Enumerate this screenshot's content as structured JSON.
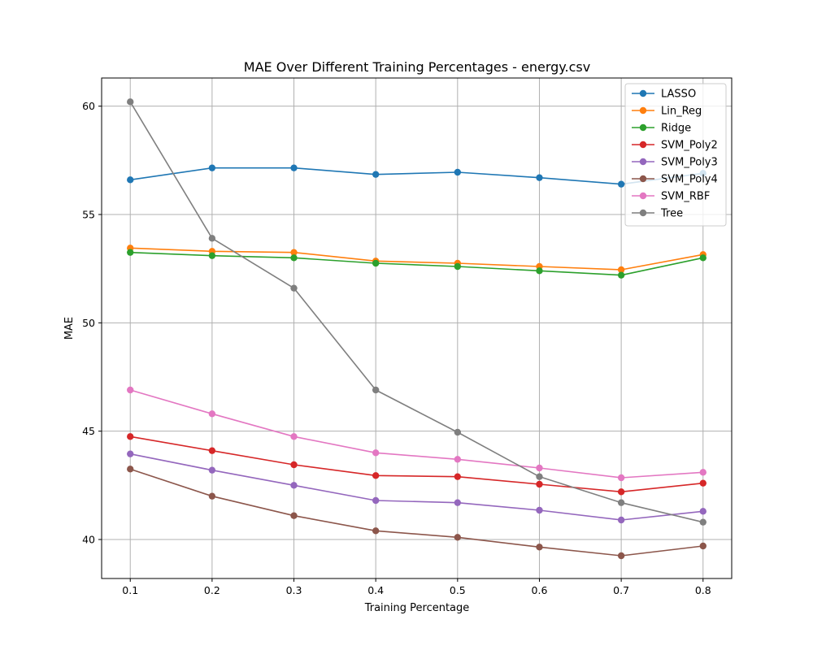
{
  "chart_data": {
    "type": "line",
    "title": "MAE Over Different Training Percentages - energy.csv",
    "xlabel": "Training Percentage",
    "ylabel": "MAE",
    "x": [
      0.1,
      0.2,
      0.3,
      0.4,
      0.5,
      0.6,
      0.7,
      0.8
    ],
    "x_ticks": [
      "0.1",
      "0.2",
      "0.3",
      "0.4",
      "0.5",
      "0.6",
      "0.7",
      "0.8"
    ],
    "xlim": [
      0.065,
      0.835
    ],
    "ylim": [
      38.2,
      61.3
    ],
    "y_ticks": [
      40,
      45,
      50,
      55,
      60
    ],
    "grid": true,
    "legend_position": "top-right",
    "marker": "circle",
    "series": [
      {
        "name": "LASSO",
        "color": "#1f77b4",
        "values": [
          56.6,
          57.15,
          57.15,
          56.85,
          56.95,
          56.7,
          56.4,
          56.9
        ]
      },
      {
        "name": "Lin_Reg",
        "color": "#ff7f0e",
        "values": [
          53.45,
          53.3,
          53.25,
          52.85,
          52.75,
          52.6,
          52.45,
          53.15
        ]
      },
      {
        "name": "Ridge",
        "color": "#2ca02c",
        "values": [
          53.25,
          53.1,
          53.0,
          52.75,
          52.6,
          52.4,
          52.2,
          53.0
        ]
      },
      {
        "name": "SVM_Poly2",
        "color": "#d62728",
        "values": [
          44.75,
          44.1,
          43.45,
          42.95,
          42.9,
          42.55,
          42.2,
          42.6
        ]
      },
      {
        "name": "SVM_Poly3",
        "color": "#9467bd",
        "values": [
          43.95,
          43.2,
          42.5,
          41.8,
          41.7,
          41.35,
          40.9,
          41.3
        ]
      },
      {
        "name": "SVM_Poly4",
        "color": "#8c564b",
        "values": [
          43.25,
          42.0,
          41.1,
          40.4,
          40.1,
          39.65,
          39.25,
          39.7
        ]
      },
      {
        "name": "SVM_RBF",
        "color": "#e377c2",
        "values": [
          46.9,
          45.8,
          44.75,
          44.0,
          43.7,
          43.3,
          42.85,
          43.1
        ]
      },
      {
        "name": "Tree",
        "color": "#7f7f7f",
        "values": [
          60.2,
          53.9,
          51.6,
          46.9,
          44.95,
          42.9,
          41.7,
          40.8
        ]
      }
    ]
  }
}
